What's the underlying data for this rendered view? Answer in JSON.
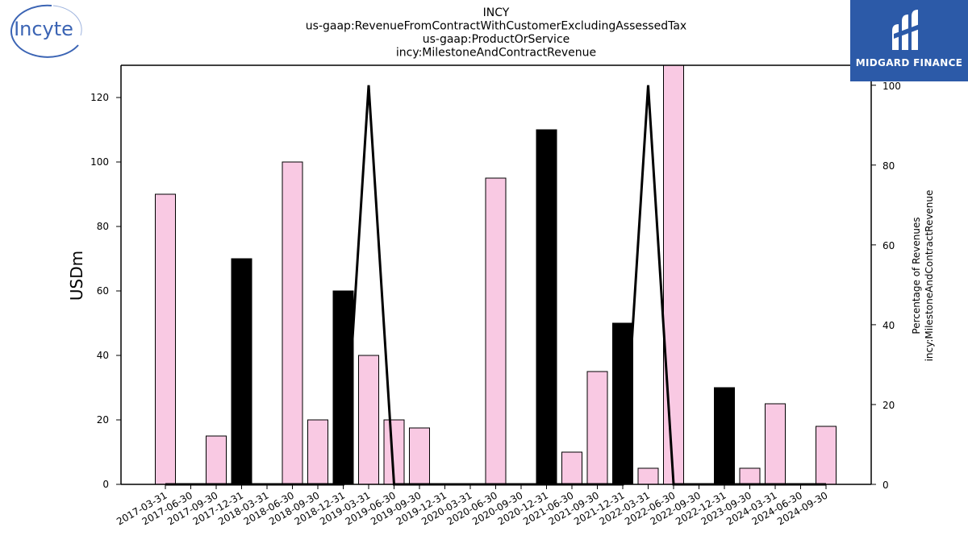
{
  "brand": {
    "left_logo_text": "Incyte",
    "right_logo_text": "MIDGARD FINANCE",
    "left_logo_color": "#3b64b4",
    "right_logo_bg": "#2c5aa8"
  },
  "chart_data": {
    "type": "bar",
    "title_lines": [
      "INCY",
      "us-gaap:RevenueFromContractWithCustomerExcludingAssessedTax",
      "us-gaap:ProductOrService",
      "incy:MilestoneAndContractRevenue"
    ],
    "ylabel_left": "USDm",
    "ylabel_right_lines": [
      "Percentage of Revenues",
      "incy:MilestoneAndContractRevenue"
    ],
    "ylim_left": [
      0,
      130
    ],
    "ylim_right": [
      0,
      105
    ],
    "yticks_left": [
      0,
      20,
      40,
      60,
      80,
      100,
      120
    ],
    "yticks_right": [
      0,
      20,
      40,
      60,
      80,
      100
    ],
    "categories": [
      "2017-03-31",
      "2017-06-30",
      "2017-09-30",
      "2017-12-31",
      "2018-03-31",
      "2018-06-30",
      "2018-09-30",
      "2018-12-31",
      "2019-03-31",
      "2019-06-30",
      "2019-09-30",
      "2019-12-31",
      "2020-03-31",
      "2020-06-30",
      "2020-09-30",
      "2020-12-31",
      "2021-06-30",
      "2021-09-30",
      "2021-12-31",
      "2022-03-31",
      "2022-06-30",
      "2022-09-30",
      "2022-12-31",
      "2023-09-30",
      "2024-03-31",
      "2024-06-30",
      "2024-09-30"
    ],
    "bar_values": [
      90,
      null,
      15,
      70,
      null,
      100,
      20,
      60,
      40,
      20,
      17.5,
      null,
      null,
      95,
      null,
      110,
      10,
      35,
      50,
      5,
      130,
      null,
      30,
      5,
      25,
      null,
      18
    ],
    "bar_colors": [
      "#f9c9e3",
      "#f9c9e3",
      "#f9c9e3",
      "#000000",
      "#f9c9e3",
      "#f9c9e3",
      "#f9c9e3",
      "#000000",
      "#f9c9e3",
      "#f9c9e3",
      "#f9c9e3",
      "#f9c9e3",
      "#f9c9e3",
      "#f9c9e3",
      "#f9c9e3",
      "#000000",
      "#f9c9e3",
      "#f9c9e3",
      "#000000",
      "#f9c9e3",
      "#f9c9e3",
      "#f9c9e3",
      "#000000",
      "#f9c9e3",
      "#f9c9e3",
      "#f9c9e3",
      "#f9c9e3"
    ],
    "line_values": [
      0,
      0,
      0,
      0,
      0,
      0,
      0,
      0,
      100,
      0,
      0,
      0,
      0,
      0,
      0,
      0,
      0,
      0,
      0,
      100,
      0,
      0,
      0,
      0,
      0,
      0,
      0
    ],
    "line_color": "#000000",
    "grid": false
  }
}
